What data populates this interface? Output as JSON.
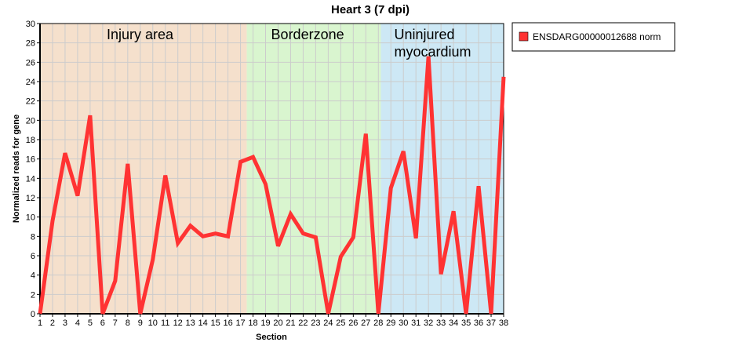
{
  "chart_data": {
    "type": "line",
    "title": "Heart 3 (7 dpi)",
    "xlabel": "Section",
    "ylabel": "Normalized reads for gene",
    "x": [
      1,
      2,
      3,
      4,
      5,
      6,
      7,
      8,
      9,
      10,
      11,
      12,
      13,
      14,
      15,
      16,
      17,
      18,
      19,
      20,
      21,
      22,
      23,
      24,
      25,
      26,
      27,
      28,
      29,
      30,
      31,
      32,
      33,
      34,
      35,
      36,
      37,
      38
    ],
    "series": [
      {
        "name": "ENSDARG00000012688 norm",
        "color": "#ff3333",
        "values": [
          0,
          9.6,
          16.6,
          12.2,
          20.5,
          0,
          3.4,
          15.5,
          0,
          5.6,
          14.3,
          7.3,
          9.1,
          8.0,
          8.3,
          8.0,
          15.7,
          16.2,
          13.4,
          7.0,
          10.3,
          8.3,
          7.9,
          0,
          5.9,
          7.9,
          18.6,
          0,
          13.0,
          16.8,
          7.8,
          26.6,
          4.1,
          10.6,
          0,
          13.2,
          0,
          24.5
        ]
      }
    ],
    "xlim": [
      1,
      38
    ],
    "ylim": [
      0,
      30
    ],
    "ytick_step": 2,
    "grid": true,
    "legend": "top-right",
    "regions": [
      {
        "label_lines": [
          "Injury area"
        ],
        "start": 1,
        "end": 17.5,
        "color": "#f5e0cc"
      },
      {
        "label_lines": [
          "Borderzone"
        ],
        "start": 17.5,
        "end": 28.2,
        "color": "#d9f5cf"
      },
      {
        "label_lines": [
          "Uninjured",
          "myocardium"
        ],
        "start": 28.2,
        "end": 38,
        "color": "#cde8f5"
      }
    ]
  }
}
